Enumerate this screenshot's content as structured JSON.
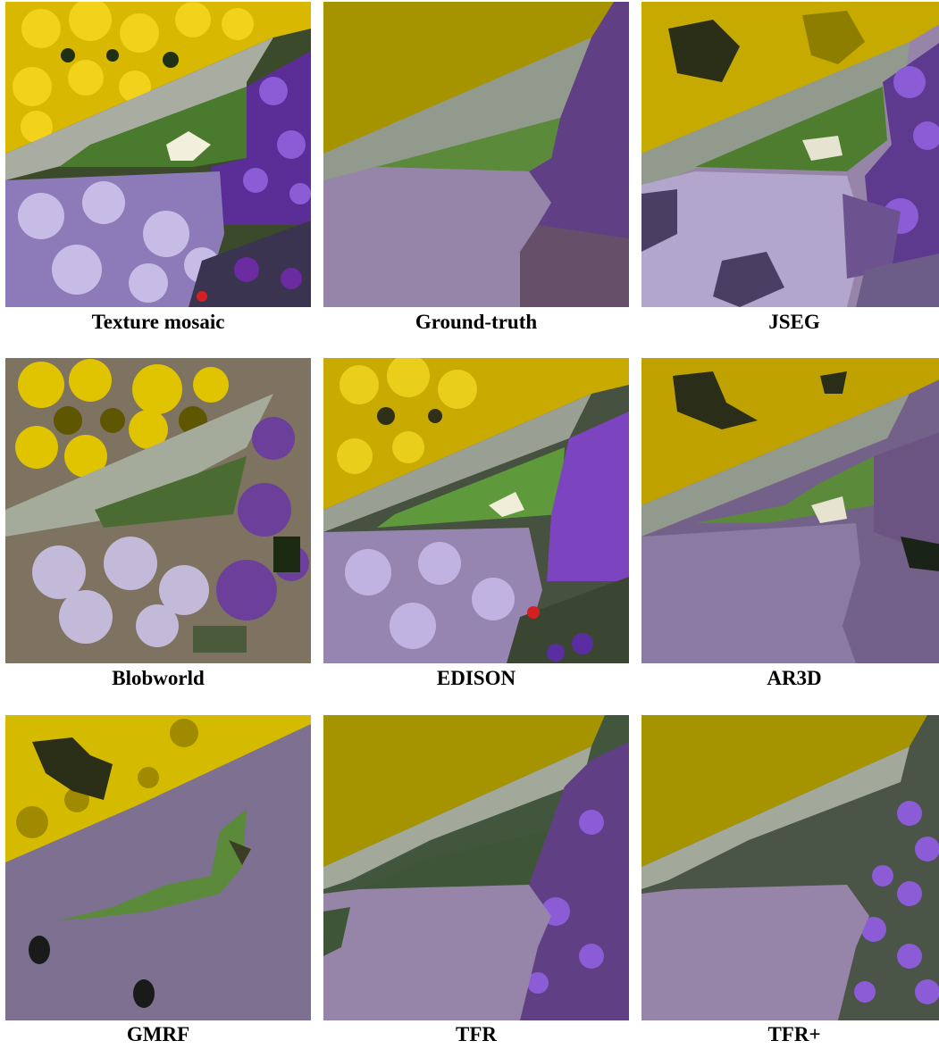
{
  "figure": {
    "panels": [
      {
        "id": "mosaic",
        "caption": "Texture mosaic"
      },
      {
        "id": "groundtruth",
        "caption": "Ground-truth"
      },
      {
        "id": "jseg",
        "caption": "JSEG"
      },
      {
        "id": "blobworld",
        "caption": "Blobworld"
      },
      {
        "id": "edison",
        "caption": "EDISON"
      },
      {
        "id": "ar3d",
        "caption": "AR3D"
      },
      {
        "id": "gmrf",
        "caption": "GMRF"
      },
      {
        "id": "tfr",
        "caption": "TFR"
      },
      {
        "id": "tfrplus",
        "caption": "TFR+"
      }
    ],
    "colors": {
      "yellow": "#a59400",
      "grey": "#929a8d",
      "green": "#5a8a3a",
      "lavender": "#9685a8",
      "purple": "#613f84",
      "darkpurple": "#664f68",
      "darkgreen": "#42563d",
      "flowerYellow": "#e3c300"
    }
  }
}
